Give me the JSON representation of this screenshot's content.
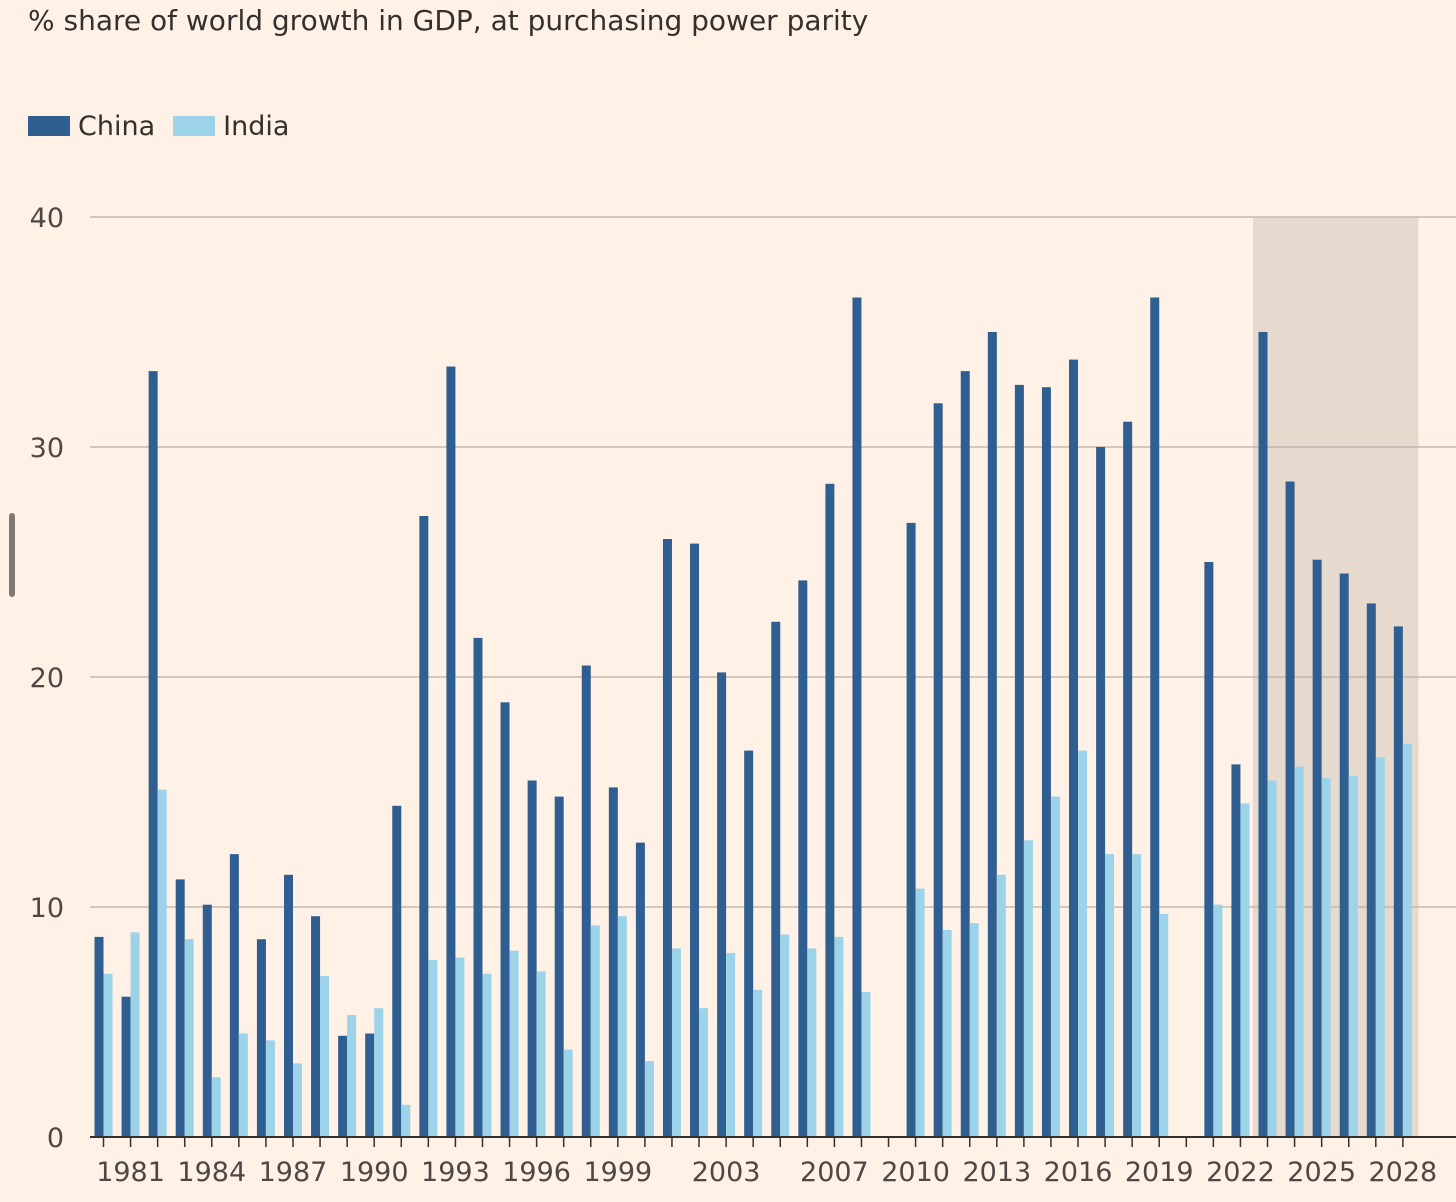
{
  "chart_data": {
    "type": "bar",
    "title": "% share of world growth in GDP, at purchasing power parity",
    "xlabel": "",
    "ylabel": "",
    "ylim": [
      0,
      40
    ],
    "yticks": [
      0,
      10,
      20,
      30,
      40
    ],
    "x_tick_labels": [
      "1981",
      "1984",
      "1987",
      "1990",
      "1993",
      "1996",
      "1999",
      "2003",
      "2007",
      "2010",
      "2013",
      "2016",
      "2019",
      "2022",
      "2025",
      "2028"
    ],
    "legend_position": "top-left",
    "grid": true,
    "shaded_region": {
      "from": "2023",
      "to": "2028",
      "meaning": "forecast"
    },
    "categories": [
      "1980",
      "1981",
      "1982",
      "1983",
      "1984",
      "1985",
      "1986",
      "1987",
      "1988",
      "1989",
      "1990",
      "1991",
      "1992",
      "1993",
      "1994",
      "1995",
      "1996",
      "1997",
      "1998",
      "1999",
      "2000",
      "2001",
      "2002",
      "2003",
      "2004",
      "2005",
      "2006",
      "2007",
      "2008",
      "2009",
      "2010",
      "2011",
      "2012",
      "2013",
      "2014",
      "2015",
      "2016",
      "2017",
      "2018",
      "2019",
      "2020",
      "2021",
      "2022",
      "2023",
      "2024",
      "2025",
      "2026",
      "2027",
      "2028"
    ],
    "series": [
      {
        "name": "China",
        "color": "#2f5f91",
        "values": [
          8.7,
          6.1,
          33.3,
          11.2,
          10.1,
          12.3,
          8.6,
          11.4,
          9.6,
          4.4,
          4.5,
          14.4,
          27.0,
          33.5,
          21.7,
          18.9,
          15.5,
          14.8,
          20.5,
          15.2,
          12.8,
          26.0,
          25.8,
          20.2,
          16.8,
          22.4,
          24.2,
          28.4,
          36.5,
          null,
          26.7,
          31.9,
          33.3,
          35.0,
          32.7,
          32.6,
          33.8,
          30.0,
          31.1,
          36.5,
          null,
          25.0,
          16.2,
          35.0,
          28.5,
          25.1,
          24.5,
          23.2,
          22.2
        ]
      },
      {
        "name": "India",
        "color": "#9dd3e8",
        "values": [
          7.1,
          8.9,
          15.1,
          8.6,
          2.6,
          4.5,
          4.2,
          3.2,
          7.0,
          5.3,
          5.6,
          1.4,
          7.7,
          7.8,
          7.1,
          8.1,
          7.2,
          3.8,
          9.2,
          9.6,
          3.3,
          8.2,
          5.6,
          8.0,
          6.4,
          8.8,
          8.2,
          8.7,
          6.3,
          null,
          10.8,
          9.0,
          9.3,
          11.4,
          12.9,
          14.8,
          16.8,
          12.3,
          12.3,
          9.7,
          null,
          10.1,
          14.5,
          15.5,
          16.1,
          15.6,
          15.7,
          16.5,
          17.1
        ]
      }
    ]
  }
}
